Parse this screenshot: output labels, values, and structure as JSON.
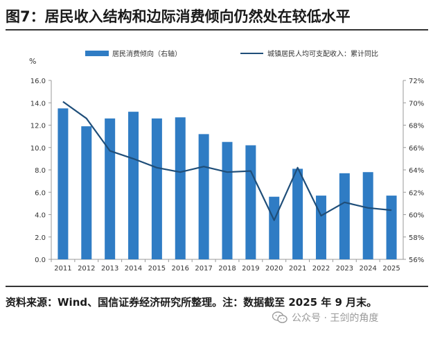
{
  "title": "图7：居民收入结构和边际消费倾向仍然处在较低水平",
  "source_note": "资料来源：Wind、国信证券经济研究所整理。注：数据截至 2025 年 9 月末。",
  "watermark": "公众号 · 王剑的角度",
  "colors": {
    "bar": "#2f7cc4",
    "line": "#1f4e79",
    "axis": "#999999",
    "text": "#333333"
  },
  "chart_data": {
    "type": "bar+line",
    "categories": [
      "2011",
      "2012",
      "2013",
      "2014",
      "2015",
      "2016",
      "2017",
      "2018",
      "2019",
      "2020",
      "2021",
      "2022",
      "2023",
      "2024",
      "2025"
    ],
    "left_axis": {
      "unit": "%",
      "ylim": [
        0,
        16
      ],
      "ticks": [
        "0.0",
        "2.0",
        "4.0",
        "6.0",
        "8.0",
        "10.0",
        "12.0",
        "14.0",
        "16.0"
      ]
    },
    "right_axis": {
      "ylim": [
        56,
        72
      ],
      "ticks": [
        "56%",
        "58%",
        "60%",
        "62%",
        "64%",
        "66%",
        "68%",
        "70%",
        "72%"
      ]
    },
    "series": [
      {
        "name": "居民消费倾向（右轴）",
        "type": "bar",
        "axis": "right",
        "values": [
          69.5,
          67.9,
          68.6,
          69.2,
          68.6,
          68.7,
          67.2,
          66.5,
          66.2,
          61.6,
          64.1,
          61.7,
          63.7,
          63.8,
          61.7
        ]
      },
      {
        "name": "城镇居民人均可支配收入：累计同比",
        "type": "line",
        "axis": "left",
        "values": [
          14.1,
          12.6,
          9.7,
          9.0,
          8.2,
          7.8,
          8.3,
          7.8,
          7.9,
          3.5,
          8.2,
          3.9,
          5.1,
          4.6,
          4.4
        ]
      }
    ]
  }
}
